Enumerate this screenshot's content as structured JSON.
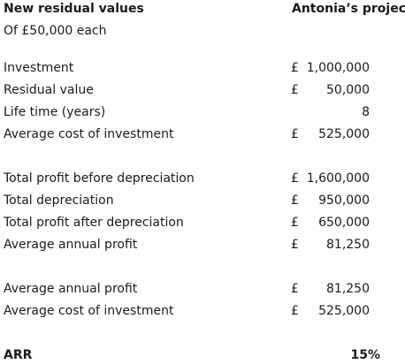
{
  "header": {
    "title": "New residual values",
    "subtitle": "Of £50,000 each",
    "column_title": "Antonia’s project"
  },
  "group1": [
    {
      "label": "Investment",
      "currency": "£",
      "value": "1,000,000"
    },
    {
      "label": "Residual value",
      "currency": "£",
      "value": "50,000"
    },
    {
      "label": "Life time (years)",
      "currency": "",
      "value": "8"
    },
    {
      "label": "Average cost of investment",
      "currency": "£",
      "value": "525,000"
    }
  ],
  "group2": [
    {
      "label": "Total profit before depreciation",
      "currency": "£",
      "value": "1,600,000"
    },
    {
      "label": "Total depreciation",
      "currency": "£",
      "value": "950,000"
    },
    {
      "label": "Total profit after depreciation",
      "currency": "£",
      "value": "650,000"
    },
    {
      "label": "Average annual profit",
      "currency": "£",
      "value": "81,250"
    }
  ],
  "group3": [
    {
      "label": "Average annual profit",
      "currency": "£",
      "value": "81,250"
    },
    {
      "label": "Average cost of investment",
      "currency": "£",
      "value": "525,000"
    }
  ],
  "result": {
    "label": "ARR",
    "value": "15%"
  }
}
